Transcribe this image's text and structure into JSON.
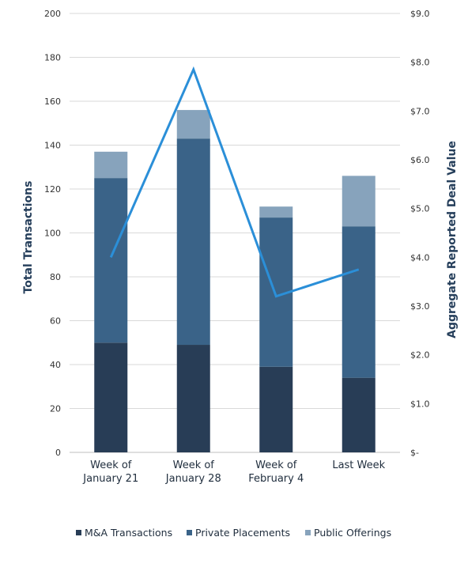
{
  "chart_data": {
    "type": "bar",
    "stacked": true,
    "categories": [
      "Week of\nJanuary 21",
      "Week of\nJanuary 28",
      "Week of\nFebruary 4",
      "Last Week"
    ],
    "series": [
      {
        "name": "M&A Transactions",
        "axis": "left",
        "color": "#283d56",
        "values": [
          50,
          49,
          39,
          34
        ]
      },
      {
        "name": "Private Placements",
        "axis": "left",
        "color": "#3a6388",
        "values": [
          75,
          94,
          68,
          69
        ]
      },
      {
        "name": "Public Offerings",
        "axis": "left",
        "color": "#87a3bc",
        "values": [
          12,
          13,
          5,
          23
        ]
      },
      {
        "axis": "right",
        "type": "line",
        "color": "#2b8fd8",
        "values": [
          4.0,
          7.85,
          3.2,
          3.75
        ]
      }
    ],
    "y_left": {
      "label": "Total Transactions",
      "range": [
        0,
        200
      ],
      "ticks": [
        0,
        20,
        40,
        60,
        80,
        100,
        120,
        140,
        160,
        180,
        200
      ],
      "tick_labels": [
        "0",
        "20",
        "40",
        "60",
        "80",
        "100",
        "120",
        "140",
        "160",
        "180",
        "200"
      ]
    },
    "y_right": {
      "label": "Aggregate Reported Deal Value",
      "range": [
        0,
        9
      ],
      "ticks": [
        0,
        1,
        2,
        3,
        4,
        5,
        6,
        7,
        8,
        9
      ],
      "tick_labels": [
        "$-",
        "$1.0",
        "$2.0",
        "$3.0",
        "$4.0",
        "$5.0",
        "$6.0",
        "$7.0",
        "$8.0",
        "$9.0"
      ]
    },
    "grid": true,
    "legend": {
      "position": "bottom"
    }
  }
}
